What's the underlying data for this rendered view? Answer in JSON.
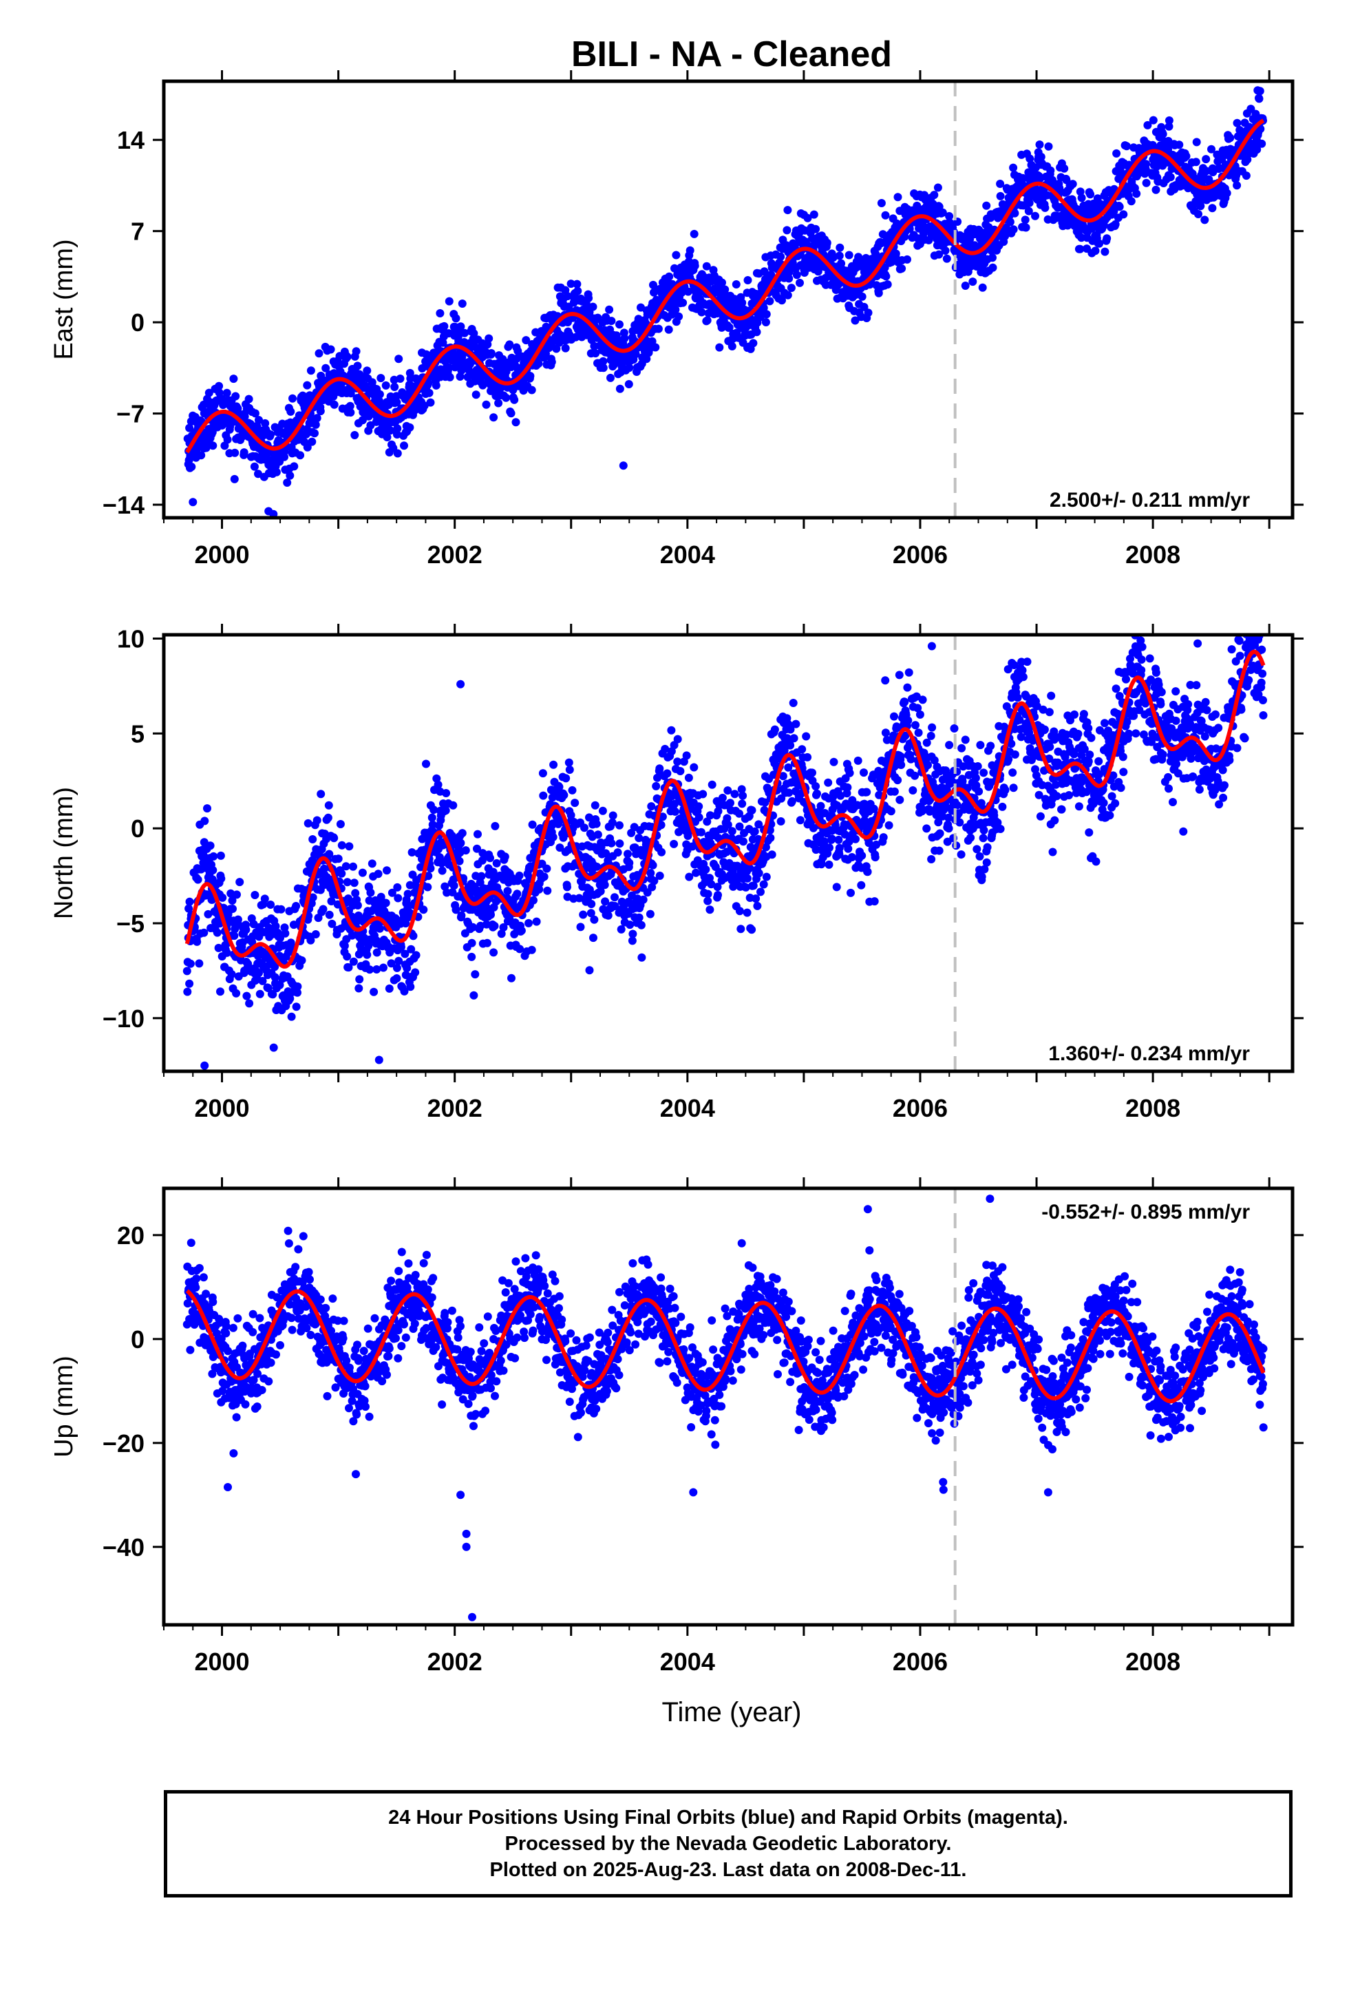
{
  "chart_data": [
    {
      "type": "scatter",
      "panel": "east",
      "title": "BILI  - NA - Cleaned",
      "ylabel": "East (mm)",
      "xlabel": "",
      "xlim": [
        1999.5,
        2009.2
      ],
      "ylim": [
        -15,
        18.5
      ],
      "xticks": [
        2000,
        2002,
        2004,
        2006,
        2008
      ],
      "yticks": [
        -14,
        -7,
        0,
        7,
        14
      ],
      "equipment_change_year": 2006.3,
      "rate_label": "2.500+/- 0.211 mm/yr",
      "model": {
        "offset": -9.6,
        "start": 1999.7,
        "end": 2008.95,
        "rate": 2.5,
        "amplitude": 2.0,
        "amplitude2": 0.0,
        "phase_year": 1999.98,
        "noise": 1.2
      },
      "series": [
        {
          "name": "Final Orbits",
          "color": "#0000ff",
          "kind": "points"
        },
        {
          "name": "Model",
          "color": "#ff0000",
          "kind": "line"
        }
      ],
      "outliers": [
        [
          1999.75,
          -13.8
        ],
        [
          2000.4,
          -14.5
        ],
        [
          2003.45,
          -11.0
        ],
        [
          2008.9,
          17.8
        ]
      ]
    },
    {
      "type": "scatter",
      "panel": "north",
      "title": "",
      "ylabel": "North (mm)",
      "xlabel": "",
      "xlim": [
        1999.5,
        2009.2
      ],
      "ylim": [
        -12.8,
        10.2
      ],
      "xticks": [
        2000,
        2002,
        2004,
        2006,
        2008
      ],
      "yticks": [
        -10,
        -5,
        0,
        5,
        10
      ],
      "equipment_change_year": 2006.3,
      "rate_label": "1.360+/- 0.234 mm/yr",
      "model": {
        "offset": -6.3,
        "start": 1999.7,
        "end": 2008.95,
        "rate": 1.36,
        "amplitude": 2.0,
        "amplitude2": 1.2,
        "phase_year": 1999.9,
        "noise": 1.5
      },
      "series": [
        {
          "name": "Final Orbits",
          "color": "#0000ff",
          "kind": "points"
        },
        {
          "name": "Model",
          "color": "#ff0000",
          "kind": "line"
        }
      ],
      "outliers": [
        [
          1999.85,
          -12.5
        ],
        [
          2001.35,
          -12.2
        ],
        [
          2002.05,
          7.6
        ],
        [
          2006.1,
          9.6
        ],
        [
          2005.7,
          7.8
        ]
      ]
    },
    {
      "type": "scatter",
      "panel": "up",
      "title": "",
      "ylabel": "Up (mm)",
      "xlabel": "Time (year)",
      "xlim": [
        1999.5,
        2009.2
      ],
      "ylim": [
        -55,
        29
      ],
      "xticks": [
        2000,
        2002,
        2004,
        2006,
        2008
      ],
      "yticks": [
        -40,
        -20,
        0,
        20
      ],
      "equipment_change_year": 2006.3,
      "rate_label": "-0.552+/- 0.895 mm/yr",
      "model": {
        "offset": 1.2,
        "start": 1999.7,
        "end": 2008.95,
        "rate": -0.552,
        "amplitude": 8.5,
        "amplitude2": 0.0,
        "phase_year": 1999.65,
        "noise": 4.0
      },
      "series": [
        {
          "name": "Final Orbits",
          "color": "#0000ff",
          "kind": "points"
        },
        {
          "name": "Model",
          "color": "#ff0000",
          "kind": "line"
        }
      ],
      "outliers": [
        [
          2000.05,
          -28.5
        ],
        [
          2000.1,
          -22.0
        ],
        [
          2001.15,
          -26.0
        ],
        [
          2002.1,
          -37.5
        ],
        [
          2002.1,
          -40.0
        ],
        [
          2002.15,
          -53.5
        ],
        [
          2002.05,
          -30.0
        ],
        [
          2004.05,
          -29.5
        ],
        [
          2006.2,
          -29.0
        ],
        [
          2006.6,
          27.0
        ],
        [
          2007.1,
          -29.5
        ],
        [
          2008.95,
          -17.0
        ],
        [
          2005.55,
          25.0
        ]
      ]
    }
  ],
  "footer": {
    "line1": "24 Hour Positions Using Final Orbits (blue) and Rapid Orbits (magenta).",
    "line2": "Processed by the Nevada Geodetic Laboratory.",
    "line3": "Plotted on 2025-Aug-23. Last data on 2008-Dec-11."
  }
}
